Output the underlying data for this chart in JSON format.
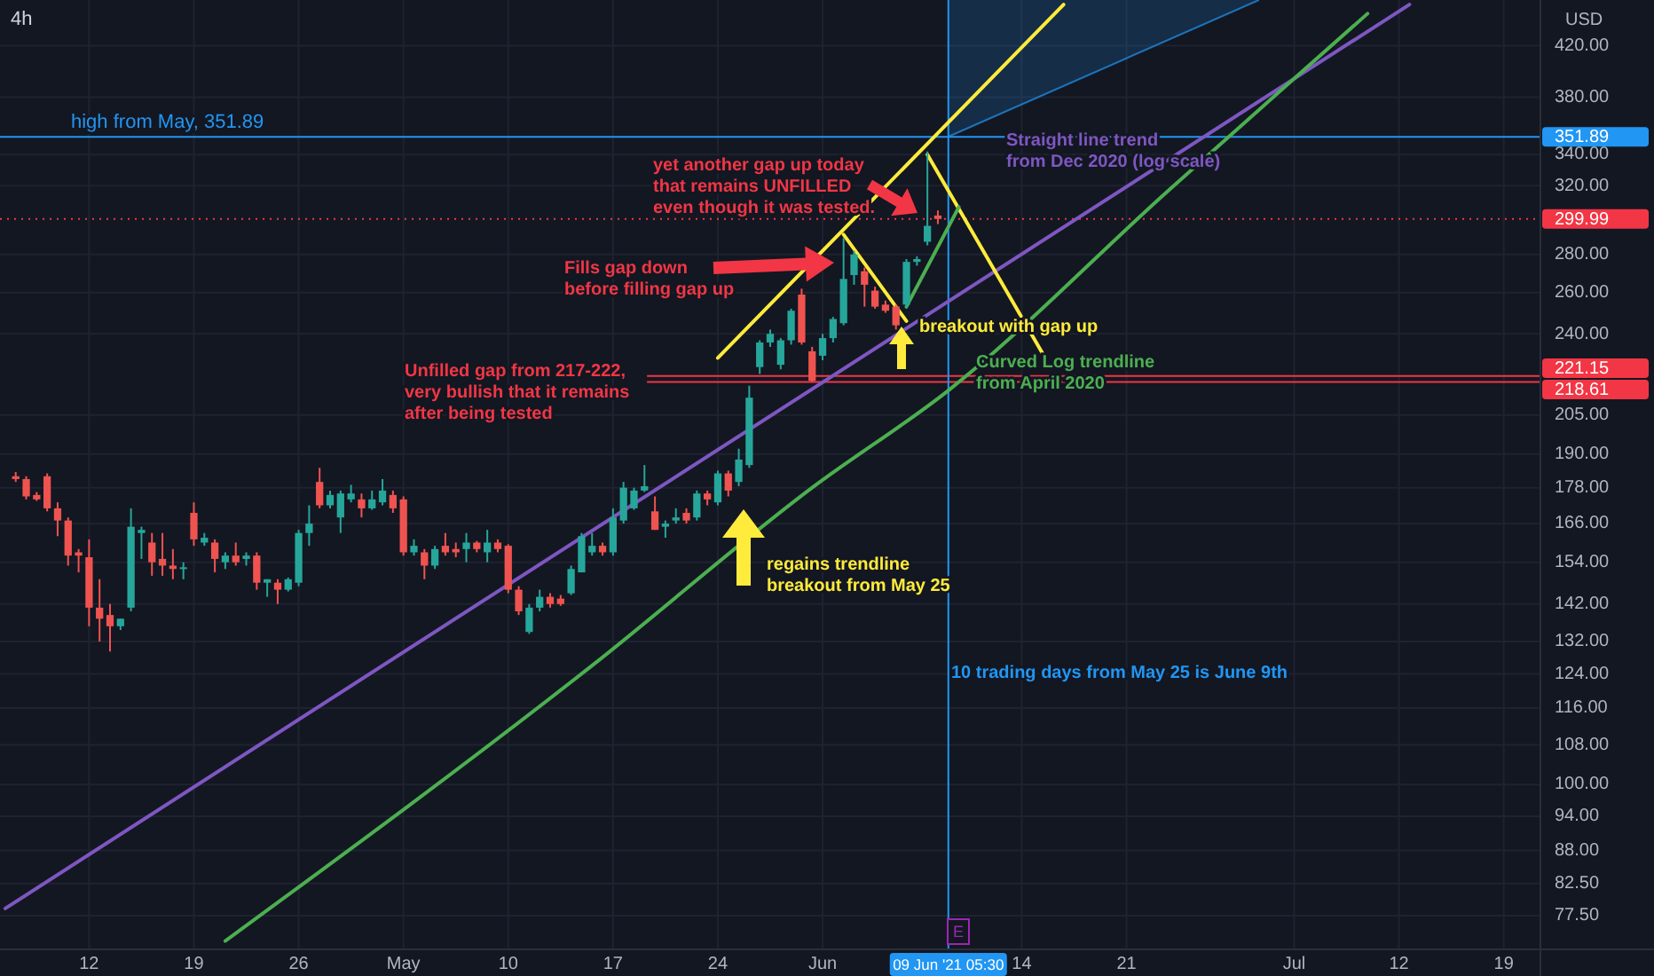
{
  "chart_data": {
    "type": "candlestick",
    "title": "4h",
    "log": true,
    "grid": true,
    "categories": [
      null,
      null,
      null,
      null,
      null,
      null,
      null,
      null,
      "12",
      null,
      null,
      null,
      null,
      null,
      null,
      null,
      null,
      null,
      "19",
      null,
      null,
      null,
      null,
      null,
      null,
      null,
      null,
      null,
      "26",
      null,
      null,
      null,
      null,
      null,
      null,
      null,
      null,
      null,
      "May",
      null,
      null,
      null,
      null,
      null,
      null,
      null,
      null,
      null,
      "10",
      null,
      null,
      null,
      null,
      null,
      null,
      null,
      null,
      null,
      "17",
      null,
      null,
      null,
      null,
      null,
      null,
      null,
      null,
      null,
      "24",
      null,
      null,
      null,
      null,
      null,
      null,
      null,
      null,
      null,
      "Jun",
      null,
      null,
      null,
      null,
      null,
      null,
      null,
      null,
      null,
      null,
      null,
      "09 Jun '21 05:30",
      null,
      null,
      null,
      null,
      null,
      null,
      "14",
      null,
      null,
      null,
      null,
      null,
      null,
      null,
      null,
      null,
      "21",
      null,
      null,
      null,
      null,
      null,
      null,
      null,
      null,
      null,
      null,
      null,
      null,
      null,
      null,
      null,
      "Jul",
      null,
      null,
      null,
      null,
      null,
      null,
      null,
      null,
      null,
      "12",
      null,
      null,
      null,
      null,
      null,
      null,
      null,
      null,
      null,
      "19",
      null,
      null,
      null
    ],
    "ylim": [
      72.6,
      459
    ],
    "yticks": [
      {
        "value": 77.5,
        "label": "77.50"
      },
      {
        "value": 82.5,
        "label": "82.50"
      },
      {
        "value": 88,
        "label": "88.00"
      },
      {
        "value": 94,
        "label": "94.00"
      },
      {
        "value": 100,
        "label": "100.00"
      },
      {
        "value": 108,
        "label": "108.00"
      },
      {
        "value": 116,
        "label": "116.00"
      },
      {
        "value": 124,
        "label": "124.00"
      },
      {
        "value": 132,
        "label": "132.00"
      },
      {
        "value": 142,
        "label": "142.00"
      },
      {
        "value": 154,
        "label": "154.00"
      },
      {
        "value": 166,
        "label": "166.00"
      },
      {
        "value": 178,
        "label": "178.00"
      },
      {
        "value": 190,
        "label": "190.00"
      },
      {
        "value": 205,
        "label": "205.00"
      },
      {
        "value": 240,
        "label": "240.00"
      },
      {
        "value": 260,
        "label": "260.00"
      },
      {
        "value": 280,
        "label": "280.00"
      },
      {
        "value": 320,
        "label": "320.00"
      },
      {
        "value": 340,
        "label": "340.00"
      },
      {
        "value": 380,
        "label": "380.00"
      },
      {
        "value": 420,
        "label": "420.00"
      }
    ],
    "ohlc": [
      null,
      [
        182,
        183.5,
        180,
        181
      ],
      [
        181,
        182,
        174,
        175
      ],
      [
        175.5,
        176.5,
        173.5,
        174
      ],
      [
        182,
        183,
        170,
        171
      ],
      [
        171,
        173,
        162,
        167
      ],
      [
        167,
        168,
        153,
        156
      ],
      [
        157,
        158,
        151,
        156
      ],
      [
        155.5,
        161,
        136,
        141
      ],
      [
        141,
        149,
        132,
        138
      ],
      [
        139,
        142,
        129.5,
        136
      ],
      [
        136,
        138,
        135,
        138
      ],
      [
        141,
        171,
        140,
        165
      ],
      [
        163,
        165,
        155,
        164
      ],
      [
        160,
        163,
        150,
        154
      ],
      [
        155,
        163,
        150,
        153
      ],
      [
        153,
        158,
        149,
        152
      ],
      [
        152,
        154,
        149,
        152.5
      ],
      [
        169.5,
        173,
        159,
        161
      ],
      [
        160,
        163,
        159,
        161.5
      ],
      [
        160,
        161,
        151,
        155
      ],
      [
        154,
        157,
        152,
        156
      ],
      [
        156,
        160,
        153,
        154
      ],
      [
        155,
        157,
        153,
        156
      ],
      [
        156,
        157,
        146,
        148
      ],
      [
        148,
        149,
        144,
        149
      ],
      [
        148,
        149,
        142,
        146
      ],
      [
        146,
        149.5,
        145.5,
        149
      ],
      [
        148,
        164,
        147,
        163
      ],
      [
        163,
        172,
        159,
        166
      ],
      [
        180,
        185,
        171,
        172
      ],
      [
        172,
        177,
        171,
        175.5
      ],
      [
        168,
        177,
        163,
        176
      ],
      [
        174,
        179,
        173,
        176
      ],
      [
        174,
        176,
        168,
        171
      ],
      [
        171,
        177,
        170.5,
        174
      ],
      [
        173,
        181,
        172,
        177
      ],
      [
        175.5,
        177,
        169.5,
        171
      ],
      [
        174,
        175,
        156,
        157
      ],
      [
        157,
        161,
        156,
        159
      ],
      [
        157,
        158,
        149,
        153
      ],
      [
        153,
        159,
        152,
        158
      ],
      [
        159,
        163,
        156,
        157
      ],
      [
        158,
        160,
        155.5,
        157
      ],
      [
        158,
        163,
        154,
        160
      ],
      [
        160,
        160.5,
        157,
        158
      ],
      [
        157,
        164,
        154,
        160
      ],
      [
        160,
        161,
        157,
        158
      ],
      [
        159,
        159.5,
        145,
        146
      ],
      [
        146,
        147,
        139,
        140
      ],
      [
        134.5,
        142,
        134,
        141
      ],
      [
        141,
        146,
        140,
        144
      ],
      [
        144,
        145,
        141,
        142
      ],
      [
        143.5,
        144.5,
        141.5,
        142
      ],
      [
        145,
        153,
        144.5,
        152
      ],
      [
        151,
        163,
        151,
        162
      ],
      [
        157,
        163,
        156,
        159
      ],
      [
        159,
        160,
        156,
        157
      ],
      [
        157,
        171,
        156,
        168
      ],
      [
        167,
        180,
        166,
        178
      ],
      [
        171,
        178,
        170.5,
        177
      ],
      [
        177,
        186,
        176.5,
        178.5
      ],
      [
        170,
        175,
        164,
        164
      ],
      [
        165,
        167,
        161.5,
        166
      ],
      [
        167,
        171,
        166,
        168
      ],
      [
        169.5,
        171,
        166,
        167
      ],
      [
        168,
        177,
        167,
        176
      ],
      [
        176,
        177,
        172,
        174
      ],
      [
        173,
        184,
        172,
        183
      ],
      [
        183,
        184,
        175,
        177
      ],
      [
        180,
        192,
        178.5,
        188
      ],
      [
        186,
        217,
        185,
        212
      ],
      [
        225,
        237,
        222,
        236
      ],
      [
        236,
        242,
        234,
        240
      ],
      [
        226,
        238,
        224,
        237
      ],
      [
        237,
        252,
        235,
        251
      ],
      [
        259,
        262,
        235,
        236
      ],
      [
        232,
        234,
        218.61,
        219
      ],
      [
        230,
        240,
        228,
        238
      ],
      [
        238,
        248,
        236,
        247
      ],
      [
        245,
        289,
        244,
        267
      ],
      [
        269,
        282,
        264,
        280
      ],
      [
        271,
        273,
        253,
        264
      ],
      [
        261,
        263,
        252,
        253
      ],
      [
        254,
        256,
        250,
        251
      ],
      [
        253,
        254,
        242,
        244
      ],
      [
        254,
        277.5,
        252,
        276
      ],
      [
        276,
        279,
        274,
        277.5
      ],
      [
        287,
        342,
        285,
        296
      ],
      [
        302,
        305,
        297,
        299.99
      ],
      null,
      null,
      null,
      null,
      null,
      null,
      null,
      null,
      null,
      null,
      null,
      null,
      null,
      null,
      null,
      null,
      null,
      null,
      null,
      null,
      null,
      null,
      null,
      null,
      null,
      null,
      null,
      null,
      null,
      null,
      null,
      null,
      null,
      null,
      null,
      null,
      null,
      null,
      null,
      null,
      null,
      null,
      null,
      null,
      null,
      null,
      null,
      null,
      null,
      null,
      null,
      null,
      null,
      null,
      null,
      null,
      null
    ],
    "series": [
      {
        "type": "line",
        "color": "#7e57c2",
        "values": [
          78.6,
          null,
          null,
          null,
          null,
          null,
          null,
          null,
          null,
          null,
          null,
          null,
          null,
          null,
          null,
          null,
          null,
          null,
          null,
          null,
          null,
          null,
          null,
          null,
          null,
          null,
          null,
          null,
          null,
          null,
          null,
          null,
          null,
          null,
          null,
          null,
          null,
          null,
          null,
          null,
          null,
          null,
          null,
          null,
          null,
          null,
          null,
          null,
          null,
          null,
          null,
          null,
          null,
          null,
          null,
          null,
          null,
          null,
          null,
          null,
          null,
          null,
          null,
          null,
          null,
          null,
          null,
          null,
          null,
          null,
          null,
          null,
          null,
          null,
          null,
          null,
          null,
          null,
          null,
          null,
          null,
          null,
          null,
          null,
          null,
          null,
          null,
          null,
          null,
          null,
          null,
          null,
          null,
          null,
          null,
          null,
          null,
          null,
          null,
          null,
          null,
          null,
          null,
          null,
          null,
          null,
          null,
          null,
          null,
          null,
          null,
          null,
          null,
          null,
          null,
          null,
          null,
          null,
          null,
          null,
          null,
          null,
          null,
          null,
          null,
          null,
          null,
          null,
          null,
          null,
          null,
          null,
          null,
          null,
          455,
          null,
          null,
          null,
          null,
          null,
          null,
          null,
          null,
          null,
          null,
          null,
          null
        ]
      },
      {
        "type": "line",
        "color": "#4caf50",
        "values": [
          null,
          null,
          null,
          null,
          null,
          null,
          null,
          null,
          null,
          null,
          null,
          null,
          null,
          null,
          null,
          null,
          null,
          null,
          null,
          null,
          null,
          73.8,
          null,
          null,
          null,
          null,
          null,
          null,
          null,
          null,
          null,
          null,
          null,
          null,
          null,
          null,
          null,
          null,
          null,
          null,
          null,
          null,
          null,
          null,
          null,
          null,
          null,
          null,
          null,
          null,
          null,
          null,
          null,
          null,
          null,
          null,
          126,
          null,
          null,
          null,
          null,
          null,
          null,
          null,
          null,
          null,
          null,
          null,
          null,
          null,
          null,
          null,
          null,
          null,
          null,
          null,
          null,
          178,
          null,
          null,
          null,
          null,
          null,
          null,
          null,
          null,
          null,
          null,
          null,
          null,
          215,
          null,
          null,
          null,
          null,
          null,
          null,
          null,
          null,
          null,
          null,
          null,
          null,
          null,
          null,
          null,
          null,
          null,
          null,
          null,
          null,
          317,
          null,
          null,
          null,
          null,
          null,
          null,
          null,
          null,
          null,
          380,
          null,
          null,
          null,
          null,
          null,
          null,
          null,
          null,
          447,
          null,
          null,
          null,
          null,
          null,
          null,
          null,
          null,
          null,
          null,
          null,
          null,
          null,
          null,
          null,
          null
        ]
      },
      {
        "type": "line",
        "color": "#ffeb3b",
        "values": [
          null,
          null,
          null,
          null,
          null,
          null,
          null,
          null,
          null,
          null,
          null,
          null,
          null,
          null,
          null,
          null,
          null,
          null,
          null,
          null,
          null,
          null,
          null,
          null,
          null,
          null,
          null,
          null,
          null,
          null,
          null,
          null,
          null,
          null,
          null,
          null,
          null,
          null,
          null,
          null,
          null,
          null,
          null,
          null,
          null,
          null,
          null,
          null,
          null,
          null,
          null,
          null,
          null,
          null,
          null,
          null,
          null,
          null,
          null,
          null,
          null,
          null,
          null,
          null,
          null,
          null,
          null,
          null,
          229,
          null,
          null,
          null,
          null,
          null,
          null,
          null,
          null,
          null,
          null,
          null,
          null,
          null,
          null,
          null,
          null,
          null,
          null,
          null,
          null,
          null,
          null,
          null,
          null,
          null,
          null,
          null,
          null,
          null,
          null,
          null,
          null,
          455,
          null,
          null,
          null,
          null,
          null,
          null,
          null,
          null,
          null,
          null,
          null,
          null,
          null,
          null,
          null,
          null,
          null,
          null,
          null,
          null,
          null,
          null,
          null,
          null,
          null,
          null,
          null,
          null,
          null,
          null,
          null,
          null,
          null,
          null,
          null,
          null,
          null,
          null,
          null,
          null,
          null,
          null,
          null,
          null,
          null
        ]
      },
      {
        "type": "line",
        "color": "#ffeb3b",
        "values": [
          null,
          null,
          null,
          null,
          null,
          null,
          null,
          null,
          null,
          null,
          null,
          null,
          null,
          null,
          null,
          null,
          null,
          null,
          null,
          null,
          null,
          null,
          null,
          null,
          null,
          null,
          null,
          null,
          null,
          null,
          null,
          null,
          null,
          null,
          null,
          null,
          null,
          null,
          null,
          null,
          null,
          null,
          null,
          null,
          null,
          null,
          null,
          null,
          null,
          null,
          null,
          null,
          null,
          null,
          null,
          null,
          null,
          null,
          null,
          null,
          null,
          null,
          null,
          null,
          null,
          null,
          null,
          null,
          null,
          null,
          null,
          null,
          null,
          null,
          null,
          null,
          null,
          null,
          null,
          null,
          291,
          null,
          null,
          null,
          null,
          null,
          246,
          null,
          null,
          null,
          null,
          null,
          null,
          null,
          null,
          null,
          null,
          null,
          null,
          null,
          null,
          null,
          null,
          null,
          null,
          null,
          null,
          null,
          null,
          null,
          null,
          null,
          null,
          null,
          null,
          null,
          null,
          null,
          null,
          null,
          null,
          null,
          null,
          null,
          null,
          null,
          null,
          null,
          null,
          null,
          null,
          null,
          null,
          null,
          null,
          null,
          null,
          null,
          null,
          null,
          null,
          null,
          null,
          null,
          null,
          null,
          null
        ]
      },
      {
        "type": "line",
        "color": "#ffeb3b",
        "values": [
          null,
          null,
          null,
          null,
          null,
          null,
          null,
          null,
          null,
          null,
          null,
          null,
          null,
          null,
          null,
          null,
          null,
          null,
          null,
          null,
          null,
          null,
          null,
          null,
          null,
          null,
          null,
          null,
          null,
          null,
          null,
          null,
          null,
          null,
          null,
          null,
          null,
          null,
          null,
          null,
          null,
          null,
          null,
          null,
          null,
          null,
          null,
          null,
          null,
          null,
          null,
          null,
          null,
          null,
          null,
          null,
          null,
          null,
          null,
          null,
          null,
          null,
          null,
          null,
          null,
          null,
          null,
          null,
          null,
          null,
          null,
          null,
          null,
          null,
          null,
          null,
          null,
          null,
          null,
          null,
          null,
          null,
          null,
          null,
          null,
          null,
          null,
          null,
          340,
          null,
          null,
          null,
          null,
          null,
          null,
          null,
          null,
          null,
          null,
          231,
          null,
          null,
          null,
          null,
          null,
          null,
          null,
          null,
          null,
          null,
          null,
          null,
          null,
          null,
          null,
          null,
          null,
          null,
          null,
          null,
          null,
          null,
          null,
          null,
          null,
          null,
          null,
          null,
          null,
          null,
          null,
          null,
          null,
          null,
          null,
          null,
          null,
          null,
          null,
          null,
          null,
          null,
          null,
          null,
          null,
          null,
          null
        ]
      },
      {
        "type": "line",
        "color": "#4caf50",
        "values": [
          null,
          null,
          null,
          null,
          null,
          null,
          null,
          null,
          null,
          null,
          null,
          null,
          null,
          null,
          null,
          null,
          null,
          null,
          null,
          null,
          null,
          null,
          null,
          null,
          null,
          null,
          null,
          null,
          null,
          null,
          null,
          null,
          null,
          null,
          null,
          null,
          null,
          null,
          null,
          null,
          null,
          null,
          null,
          null,
          null,
          null,
          null,
          null,
          null,
          null,
          null,
          null,
          null,
          null,
          null,
          null,
          null,
          null,
          null,
          null,
          null,
          null,
          null,
          null,
          null,
          null,
          null,
          null,
          null,
          null,
          null,
          null,
          null,
          null,
          null,
          null,
          null,
          null,
          null,
          null,
          null,
          null,
          null,
          null,
          null,
          null,
          253,
          null,
          null,
          null,
          null,
          307,
          null,
          null,
          null,
          null,
          null,
          null,
          null,
          null,
          null,
          null,
          null,
          null,
          null,
          null,
          null,
          null,
          null,
          null,
          null,
          null,
          null,
          null,
          null,
          null,
          null,
          null,
          null,
          null,
          null,
          null,
          null,
          null,
          null,
          null,
          null,
          null,
          null,
          null,
          null,
          null,
          null,
          null,
          null,
          null,
          null,
          null,
          null,
          null,
          null,
          null,
          null,
          null,
          null,
          null,
          null
        ]
      }
    ],
    "ref_lines": [
      {
        "axis": "y",
        "value": 351.89,
        "label": "351.89",
        "color": "#2196f3"
      },
      {
        "axis": "y",
        "value": 299.99,
        "label": "299.99",
        "color": "#f23645",
        "line_style": "dotted"
      },
      {
        "axis": "y",
        "value": 221.15,
        "label": "221.15",
        "color": "#f23645"
      },
      {
        "axis": "y",
        "value": 218.61,
        "label": "218.61",
        "color": "#f23645"
      },
      {
        "axis": "x",
        "value": "09 Jun '21 05:30",
        "color": "#2196f3"
      }
    ],
    "annotations": [
      "Unfilled gap from 217-222,\nvery bullish that it remains\nafter being tested",
      "Fills gap down\nbefore filling gap up",
      "yet another gap up today\nthat remains UNFILLED\neven though it was tested.",
      "Straight line trend\nfrom Dec 2020 (log scale)",
      "breakout with gap up",
      "Curved Log trendline\nfrom April 2020",
      "regains trendline\nbreakout from May 25",
      "10 trading days from May 25 is June 9th",
      "E",
      "high from May, 351.89",
      "USD"
    ]
  }
}
